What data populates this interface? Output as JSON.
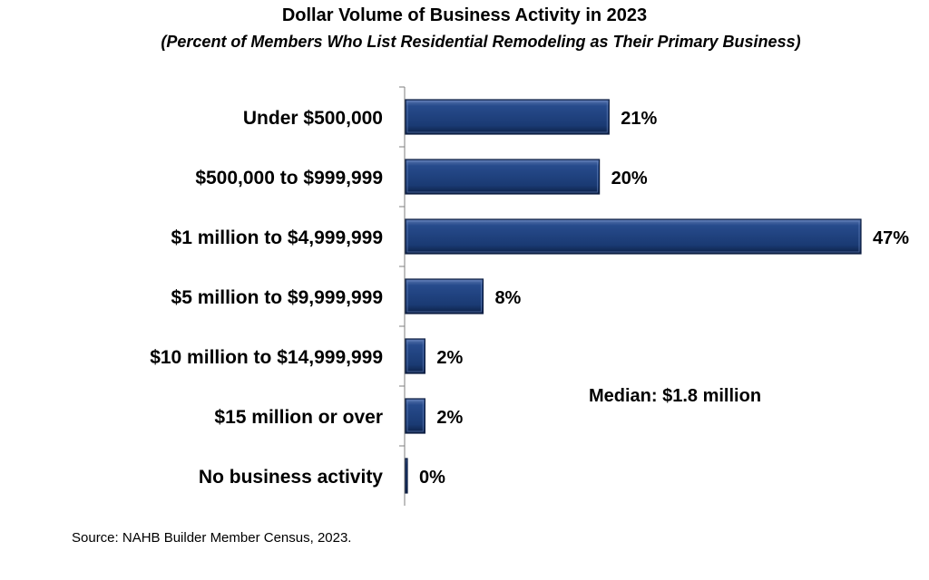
{
  "chart_data": {
    "type": "bar",
    "orientation": "horizontal",
    "title": "Dollar Volume of Business Activity in 2023",
    "subtitle": "(Percent of Members Who List Residential Remodeling as Their Primary Business)",
    "categories": [
      "Under $500,000",
      "$500,000 to $999,999",
      "$1 million to $4,999,999",
      "$5 million to $9,999,999",
      "$10 million to $14,999,999",
      "$15 million or over",
      "No business activity"
    ],
    "values": [
      21,
      20,
      47,
      8,
      2,
      2,
      0
    ],
    "value_labels": [
      "21%",
      "20%",
      "47%",
      "8%",
      "2%",
      "2%",
      "0%"
    ],
    "xlim": [
      0,
      47
    ],
    "grid": false,
    "bar_color": "#1f3f7a",
    "annotation": "Median: $1.8 million",
    "source": "Source: NAHB Builder Member Census, 2023."
  }
}
